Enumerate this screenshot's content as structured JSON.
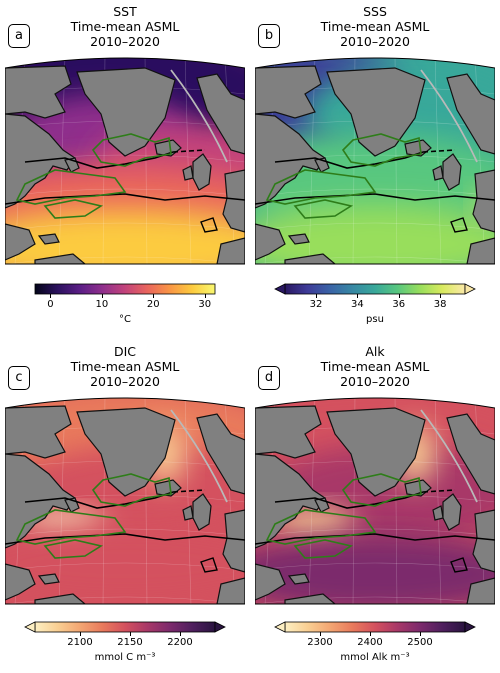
{
  "panels": [
    {
      "id": "a",
      "label": "a",
      "title": [
        "SST",
        "Time-mean ASML",
        "2010–2020"
      ],
      "colormap": [
        "#04051a",
        "#2b115e",
        "#5b1e86",
        "#8f2f8c",
        "#c2437b",
        "#e9655d",
        "#f99645",
        "#fccb3f",
        "#f9f871"
      ],
      "colorbar": {
        "ticks": [
          "0",
          "10",
          "20",
          "30"
        ],
        "tick_values": [
          0,
          10,
          20,
          30
        ],
        "range": [
          -3,
          32
        ],
        "unit": "°C",
        "extend": "neither"
      }
    },
    {
      "id": "b",
      "label": "b",
      "title": [
        "SSS",
        "Time-mean ASML",
        "2010–2020"
      ],
      "colormap": [
        "#2a1862",
        "#3e3b98",
        "#3a63a6",
        "#3888a4",
        "#39a89a",
        "#58c77f",
        "#98de5c",
        "#d9ea5f",
        "#fbe9a8"
      ],
      "colorbar": {
        "ticks": [
          "32",
          "34",
          "36",
          "38"
        ],
        "tick_values": [
          32,
          34,
          36,
          38
        ],
        "range": [
          30.5,
          39.2
        ],
        "unit": "psu",
        "extend": "both"
      }
    },
    {
      "id": "c",
      "label": "c",
      "title": [
        "DIC",
        "Time-mean ASML",
        "2010–2020"
      ],
      "colormap": [
        "#fdefc2",
        "#f9cf93",
        "#f3a672",
        "#e97a5c",
        "#d4515e",
        "#a83868",
        "#7c2a6c",
        "#4f1f5e",
        "#2a1440"
      ],
      "colorbar": {
        "ticks": [
          "2100",
          "2150",
          "2200"
        ],
        "tick_values": [
          2100,
          2150,
          2200
        ],
        "range": [
          2055,
          2235
        ],
        "unit": "mmol C m⁻³",
        "extend": "both"
      }
    },
    {
      "id": "d",
      "label": "d",
      "title": [
        "Alk",
        "Time-mean ASML",
        "2010–2020"
      ],
      "colormap": [
        "#fdefc2",
        "#f9cf93",
        "#f3a672",
        "#e97a5c",
        "#d4515e",
        "#a83868",
        "#7c2a6c",
        "#4f1f5e",
        "#2a1440"
      ],
      "colorbar": {
        "ticks": [
          "2300",
          "2400",
          "2500"
        ],
        "tick_values": [
          2300,
          2400,
          2500
        ],
        "range": [
          2230,
          2590
        ],
        "unit": "mmol Alk m⁻³",
        "extend": "both"
      }
    }
  ],
  "colors": {
    "land": "#808080",
    "coast": "#111111",
    "green_contour": "#2e7d19",
    "black_contour": "#000000",
    "track": "#b9b9b9"
  }
}
